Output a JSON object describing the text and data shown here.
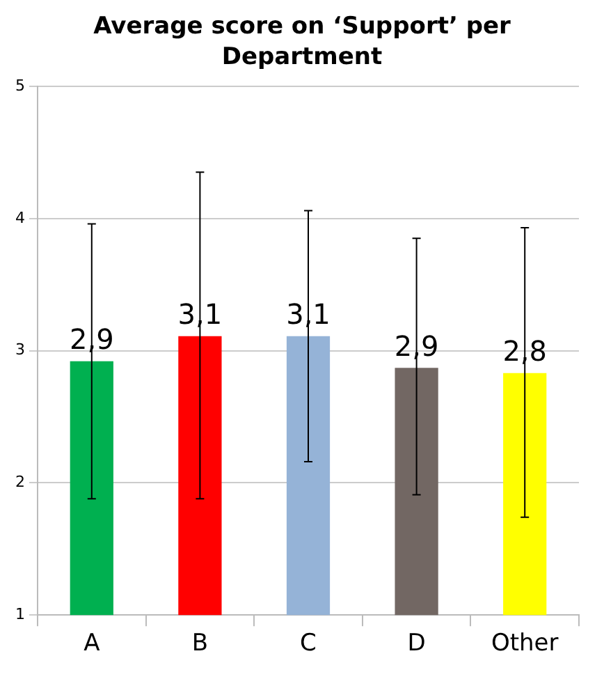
{
  "chart_data": {
    "type": "bar",
    "title": "Average score on ‘Support’ per Department",
    "categories": [
      "A",
      "B",
      "C",
      "D",
      "Other"
    ],
    "values": [
      2.92,
      3.11,
      3.11,
      2.87,
      2.83
    ],
    "colors": [
      "#00b050",
      "#ff0000",
      "#95b3d7",
      "#726763",
      "#ffff00"
    ],
    "value_labels": [
      "2,9",
      "3,1",
      "3,1",
      "2,9",
      "2,8"
    ],
    "errors": [
      [
        1.88,
        3.96
      ],
      [
        1.88,
        4.35
      ],
      [
        2.16,
        4.06
      ],
      [
        1.91,
        3.85
      ],
      [
        1.74,
        3.93
      ]
    ],
    "ylim": [
      1,
      5
    ],
    "yticks": [
      1,
      2,
      3,
      4,
      5
    ],
    "grid": "y",
    "legend": false
  }
}
